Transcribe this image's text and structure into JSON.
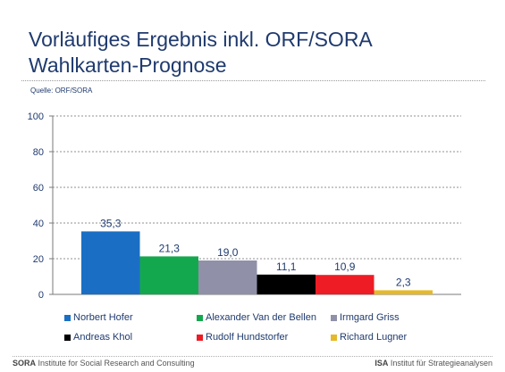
{
  "title_line1": "Vorläufiges Ergebnis inkl. ORF/SORA",
  "title_line2": "Wahlkarten-Prognose",
  "source": "Quelle: ORF/SORA",
  "chart_data": {
    "type": "bar",
    "categories": [
      "Norbert Hofer",
      "Alexander Van der Bellen",
      "Irmgard Griss",
      "Andreas Khol",
      "Rudolf Hundstorfer",
      "Richard Lugner"
    ],
    "values": [
      35.3,
      21.3,
      19.0,
      11.1,
      10.9,
      2.3
    ],
    "data_labels": [
      "35,3",
      "21,3",
      "19,0",
      "11,1",
      "10,9",
      "2,3"
    ],
    "colors": [
      "#1a6fc4",
      "#14a84e",
      "#9090a8",
      "#000000",
      "#ee1c24",
      "#e5b928"
    ],
    "ylim": [
      0,
      100
    ],
    "yticks": [
      0,
      20,
      40,
      60,
      80,
      100
    ],
    "grid": true,
    "legend": "bottom"
  },
  "footer": {
    "left_brand": "SORA",
    "left_text": " Institute for Social Research and Consulting",
    "right_brand": "ISA",
    "right_text": " Institut für Strategieanalysen"
  }
}
